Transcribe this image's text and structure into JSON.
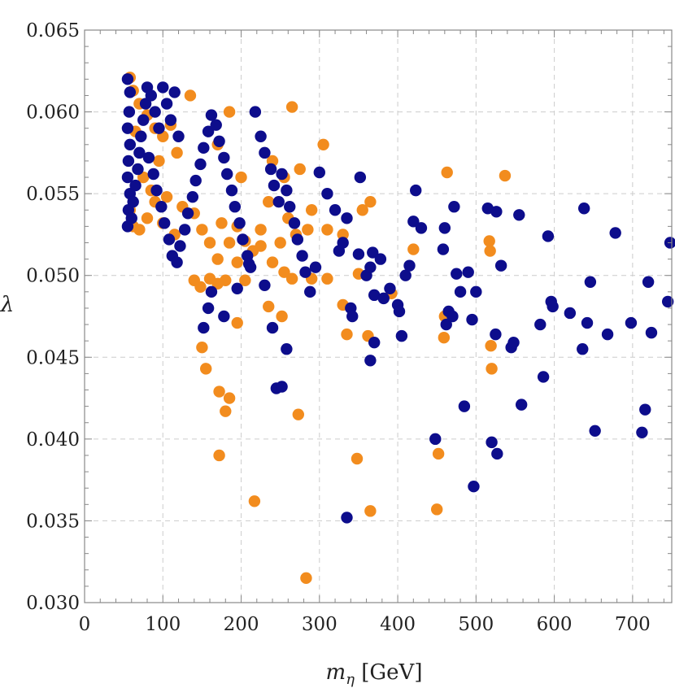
{
  "chart_data": {
    "type": "scatter",
    "xlabel_var": "m",
    "xlabel_sub": "η",
    "xlabel_unit": " [GeV]",
    "ylabel": "λ",
    "xlim": [
      0,
      750
    ],
    "ylim": [
      0.03,
      0.065
    ],
    "x_ticks": [
      0,
      100,
      200,
      300,
      400,
      500,
      600,
      700
    ],
    "x_tick_labels": [
      "0",
      "100",
      "200",
      "300",
      "400",
      "500",
      "600",
      "700"
    ],
    "y_ticks": [
      0.03,
      0.035,
      0.04,
      0.045,
      0.05,
      0.055,
      0.06,
      0.065
    ],
    "y_tick_labels": [
      "0.030",
      "0.035",
      "0.040",
      "0.045",
      "0.050",
      "0.055",
      "0.060",
      "0.065"
    ],
    "grid": true,
    "colors": {
      "series_1": "#f28c1e",
      "series_2": "#0d0d8c",
      "grid": "#cccccc",
      "frame": "#888888"
    },
    "series": [
      {
        "color": "#f28c1e",
        "points": [
          [
            58,
            0.0621
          ],
          [
            62,
            0.0613
          ],
          [
            70,
            0.0605
          ],
          [
            80,
            0.0598
          ],
          [
            90,
            0.059
          ],
          [
            100,
            0.0585
          ],
          [
            110,
            0.0592
          ],
          [
            135,
            0.061
          ],
          [
            118,
            0.0575
          ],
          [
            95,
            0.057
          ],
          [
            65,
            0.0588
          ],
          [
            75,
            0.056
          ],
          [
            85,
            0.0552
          ],
          [
            105,
            0.0548
          ],
          [
            125,
            0.0542
          ],
          [
            58,
            0.054
          ],
          [
            62,
            0.053
          ],
          [
            70,
            0.0528
          ],
          [
            80,
            0.0535
          ],
          [
            90,
            0.0545
          ],
          [
            100,
            0.0532
          ],
          [
            115,
            0.0525
          ],
          [
            140,
            0.0538
          ],
          [
            150,
            0.0528
          ],
          [
            160,
            0.052
          ],
          [
            175,
            0.0532
          ],
          [
            185,
            0.052
          ],
          [
            195,
            0.0508
          ],
          [
            205,
            0.0521
          ],
          [
            215,
            0.0515
          ],
          [
            225,
            0.0528
          ],
          [
            250,
            0.052
          ],
          [
            270,
            0.0525
          ],
          [
            285,
            0.0528
          ],
          [
            310,
            0.0528
          ],
          [
            330,
            0.0525
          ],
          [
            265,
            0.0603
          ],
          [
            305,
            0.058
          ],
          [
            240,
            0.057
          ],
          [
            200,
            0.056
          ],
          [
            170,
            0.058
          ],
          [
            185,
            0.06
          ],
          [
            275,
            0.0565
          ],
          [
            235,
            0.0545
          ],
          [
            255,
            0.056
          ],
          [
            365,
            0.0545
          ],
          [
            355,
            0.054
          ],
          [
            290,
            0.054
          ],
          [
            260,
            0.0535
          ],
          [
            225,
            0.0518
          ],
          [
            195,
            0.053
          ],
          [
            170,
            0.051
          ],
          [
            140,
            0.0497
          ],
          [
            148,
            0.0493
          ],
          [
            160,
            0.0498
          ],
          [
            170,
            0.0495
          ],
          [
            180,
            0.0497
          ],
          [
            205,
            0.0497
          ],
          [
            240,
            0.0508
          ],
          [
            255,
            0.0502
          ],
          [
            265,
            0.0498
          ],
          [
            290,
            0.0498
          ],
          [
            310,
            0.0498
          ],
          [
            350,
            0.0501
          ],
          [
            330,
            0.0482
          ],
          [
            392,
            0.0489
          ],
          [
            235,
            0.0481
          ],
          [
            252,
            0.0475
          ],
          [
            195,
            0.0471
          ],
          [
            150,
            0.0456
          ],
          [
            155,
            0.0443
          ],
          [
            172,
            0.0429
          ],
          [
            180,
            0.0417
          ],
          [
            185,
            0.0425
          ],
          [
            172,
            0.039
          ],
          [
            217,
            0.0362
          ],
          [
            273,
            0.0415
          ],
          [
            283,
            0.0315
          ],
          [
            335,
            0.0464
          ],
          [
            348,
            0.0388
          ],
          [
            365,
            0.0356
          ],
          [
            450,
            0.0357
          ],
          [
            452,
            0.0391
          ],
          [
            460,
            0.0475
          ],
          [
            463,
            0.0563
          ],
          [
            420,
            0.0516
          ],
          [
            517,
            0.0521
          ],
          [
            518,
            0.0515
          ],
          [
            519,
            0.0457
          ],
          [
            520,
            0.0443
          ],
          [
            537,
            0.0561
          ],
          [
            459,
            0.0462
          ],
          [
            362,
            0.0463
          ]
        ]
      },
      {
        "color": "#0d0d8c",
        "points": [
          [
            55,
            0.062
          ],
          [
            58,
            0.0612
          ],
          [
            57,
            0.06
          ],
          [
            55,
            0.059
          ],
          [
            58,
            0.058
          ],
          [
            56,
            0.057
          ],
          [
            55,
            0.056
          ],
          [
            58,
            0.055
          ],
          [
            56,
            0.054
          ],
          [
            55,
            0.053
          ],
          [
            60,
            0.0535
          ],
          [
            62,
            0.0545
          ],
          [
            65,
            0.0555
          ],
          [
            68,
            0.0565
          ],
          [
            70,
            0.0575
          ],
          [
            72,
            0.0585
          ],
          [
            75,
            0.0595
          ],
          [
            78,
            0.0605
          ],
          [
            80,
            0.0615
          ],
          [
            85,
            0.061
          ],
          [
            90,
            0.06
          ],
          [
            95,
            0.059
          ],
          [
            100,
            0.0615
          ],
          [
            105,
            0.0605
          ],
          [
            110,
            0.0595
          ],
          [
            115,
            0.0612
          ],
          [
            120,
            0.0585
          ],
          [
            82,
            0.0572
          ],
          [
            88,
            0.0562
          ],
          [
            92,
            0.0552
          ],
          [
            98,
            0.0542
          ],
          [
            102,
            0.0532
          ],
          [
            108,
            0.0522
          ],
          [
            112,
            0.0512
          ],
          [
            118,
            0.0508
          ],
          [
            122,
            0.0518
          ],
          [
            128,
            0.0528
          ],
          [
            132,
            0.0538
          ],
          [
            138,
            0.0548
          ],
          [
            142,
            0.0558
          ],
          [
            148,
            0.0568
          ],
          [
            152,
            0.0578
          ],
          [
            158,
            0.0588
          ],
          [
            162,
            0.0598
          ],
          [
            168,
            0.0592
          ],
          [
            172,
            0.0582
          ],
          [
            178,
            0.0572
          ],
          [
            182,
            0.0562
          ],
          [
            188,
            0.0552
          ],
          [
            192,
            0.0542
          ],
          [
            198,
            0.0532
          ],
          [
            202,
            0.0522
          ],
          [
            208,
            0.0512
          ],
          [
            212,
            0.0505
          ],
          [
            218,
            0.06
          ],
          [
            225,
            0.0585
          ],
          [
            230,
            0.0575
          ],
          [
            238,
            0.0565
          ],
          [
            242,
            0.0555
          ],
          [
            248,
            0.0545
          ],
          [
            252,
            0.0562
          ],
          [
            258,
            0.0552
          ],
          [
            262,
            0.0542
          ],
          [
            268,
            0.0532
          ],
          [
            272,
            0.0522
          ],
          [
            278,
            0.0512
          ],
          [
            282,
            0.0502
          ],
          [
            288,
            0.049
          ],
          [
            295,
            0.0505
          ],
          [
            300,
            0.0563
          ],
          [
            310,
            0.055
          ],
          [
            320,
            0.054
          ],
          [
            325,
            0.0515
          ],
          [
            330,
            0.052
          ],
          [
            335,
            0.0535
          ],
          [
            340,
            0.048
          ],
          [
            342,
            0.0475
          ],
          [
            350,
            0.0513
          ],
          [
            352,
            0.056
          ],
          [
            360,
            0.05
          ],
          [
            365,
            0.0505
          ],
          [
            368,
            0.0514
          ],
          [
            370,
            0.0488
          ],
          [
            378,
            0.051
          ],
          [
            382,
            0.0486
          ],
          [
            390,
            0.0492
          ],
          [
            400,
            0.0482
          ],
          [
            402,
            0.0478
          ],
          [
            405,
            0.0463
          ],
          [
            410,
            0.05
          ],
          [
            415,
            0.0506
          ],
          [
            420,
            0.0533
          ],
          [
            423,
            0.0552
          ],
          [
            430,
            0.0529
          ],
          [
            365,
            0.0448
          ],
          [
            370,
            0.0459
          ],
          [
            335,
            0.0352
          ],
          [
            245,
            0.0431
          ],
          [
            252,
            0.0432
          ],
          [
            258,
            0.0455
          ],
          [
            240,
            0.0468
          ],
          [
            230,
            0.0494
          ],
          [
            210,
            0.0507
          ],
          [
            195,
            0.0492
          ],
          [
            178,
            0.0475
          ],
          [
            162,
            0.049
          ],
          [
            158,
            0.048
          ],
          [
            152,
            0.0468
          ],
          [
            448,
            0.04
          ],
          [
            458,
            0.0516
          ],
          [
            460,
            0.0529
          ],
          [
            462,
            0.047
          ],
          [
            465,
            0.0478
          ],
          [
            470,
            0.0475
          ],
          [
            472,
            0.0542
          ],
          [
            475,
            0.0501
          ],
          [
            480,
            0.049
          ],
          [
            485,
            0.042
          ],
          [
            490,
            0.0502
          ],
          [
            495,
            0.0473
          ],
          [
            497,
            0.0371
          ],
          [
            500,
            0.049
          ],
          [
            515,
            0.0541
          ],
          [
            520,
            0.0398
          ],
          [
            525,
            0.0464
          ],
          [
            526,
            0.0539
          ],
          [
            527,
            0.0391
          ],
          [
            532,
            0.0506
          ],
          [
            545,
            0.0456
          ],
          [
            548,
            0.0459
          ],
          [
            555,
            0.0537
          ],
          [
            558,
            0.0421
          ],
          [
            582,
            0.047
          ],
          [
            586,
            0.0438
          ],
          [
            592,
            0.0524
          ],
          [
            596,
            0.0484
          ],
          [
            598,
            0.0481
          ],
          [
            620,
            0.0477
          ],
          [
            636,
            0.0455
          ],
          [
            638,
            0.0541
          ],
          [
            642,
            0.0471
          ],
          [
            646,
            0.0496
          ],
          [
            652,
            0.0405
          ],
          [
            668,
            0.0464
          ],
          [
            678,
            0.0526
          ],
          [
            698,
            0.0471
          ],
          [
            712,
            0.0404
          ],
          [
            716,
            0.0418
          ],
          [
            720,
            0.0496
          ],
          [
            724,
            0.0465
          ],
          [
            745,
            0.0484
          ],
          [
            748,
            0.052
          ]
        ]
      }
    ]
  }
}
